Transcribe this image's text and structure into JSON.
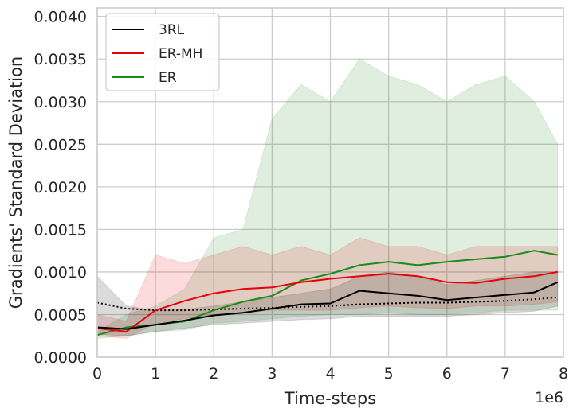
{
  "chart_data": {
    "type": "line",
    "xlabel": "Time-steps",
    "ylabel": "Gradients' Standard Deviation",
    "x_offset_text": "1e6",
    "xlim": [
      0,
      8000000
    ],
    "ylim": [
      0,
      0.0041
    ],
    "x_ticks": [
      0,
      1000000,
      2000000,
      3000000,
      4000000,
      5000000,
      6000000,
      7000000,
      8000000
    ],
    "x_tick_labels": [
      "0",
      "1",
      "2",
      "3",
      "4",
      "5",
      "6",
      "7",
      "8"
    ],
    "y_ticks": [
      0,
      0.0005,
      0.001,
      0.0015,
      0.002,
      0.0025,
      0.003,
      0.0035,
      0.004
    ],
    "y_tick_labels": [
      "0.0000",
      "0.0005",
      "0.0010",
      "0.0015",
      "0.0020",
      "0.0025",
      "0.0030",
      "0.0035",
      "0.0040"
    ],
    "grid": true,
    "legend_position": "top-left",
    "x": [
      0,
      500000,
      1000000,
      1500000,
      2000000,
      2500000,
      3000000,
      3500000,
      4000000,
      4500000,
      5000000,
      5500000,
      6000000,
      6500000,
      7000000,
      7500000,
      7900000
    ],
    "series": [
      {
        "name": "3RL",
        "color": "#000000",
        "dotted_color": "#000000",
        "values": [
          0.00035,
          0.00033,
          0.00038,
          0.00043,
          0.00049,
          0.00052,
          0.00057,
          0.00062,
          0.00063,
          0.00078,
          0.00075,
          0.00072,
          0.00067,
          0.0007,
          0.00073,
          0.00076,
          0.00088
        ],
        "band_low": [
          0.00027,
          0.00025,
          0.0003,
          0.00034,
          0.00038,
          0.0004,
          0.00042,
          0.00044,
          0.00045,
          0.00048,
          0.00048,
          0.00048,
          0.00048,
          0.0005,
          0.00052,
          0.00054,
          0.0006
        ],
        "band_high": [
          0.00095,
          0.0006,
          0.00055,
          0.00056,
          0.0006,
          0.00065,
          0.0007,
          0.00075,
          0.0008,
          0.00095,
          0.001,
          0.00095,
          0.00085,
          0.0009,
          0.00095,
          0.001,
          0.001
        ],
        "baseline": [
          0.00064,
          0.00057,
          0.00055,
          0.00055,
          0.00056,
          0.00057,
          0.00058,
          0.00059,
          0.0006,
          0.00062,
          0.00063,
          0.00064,
          0.00064,
          0.00065,
          0.00066,
          0.00068,
          0.0007
        ]
      },
      {
        "name": "ER-MH",
        "color": "#e8000b",
        "values": [
          0.00034,
          0.0003,
          0.00055,
          0.00066,
          0.00075,
          0.0008,
          0.00082,
          0.00088,
          0.00092,
          0.00095,
          0.00098,
          0.00095,
          0.00088,
          0.00087,
          0.00092,
          0.00095,
          0.001
        ],
        "band_low": [
          0.00025,
          0.00022,
          0.0004,
          0.00045,
          0.0005,
          0.00052,
          0.00055,
          0.00055,
          0.00055,
          0.00058,
          0.0006,
          0.00058,
          0.00057,
          0.0006,
          0.0006,
          0.00062,
          0.00065
        ],
        "band_high": [
          0.0005,
          0.00042,
          0.0012,
          0.0011,
          0.0012,
          0.0013,
          0.0012,
          0.0013,
          0.0012,
          0.0014,
          0.0013,
          0.0013,
          0.0012,
          0.0013,
          0.0013,
          0.0013,
          0.0013
        ]
      },
      {
        "name": "ER",
        "color": "#1a8a1a",
        "values": [
          0.00026,
          0.00035,
          0.00038,
          0.00042,
          0.00055,
          0.00065,
          0.00072,
          0.0009,
          0.00098,
          0.00108,
          0.00112,
          0.00108,
          0.00112,
          0.00115,
          0.00118,
          0.00125,
          0.0012
        ],
        "band_low": [
          0.00022,
          0.00025,
          0.0003,
          0.00032,
          0.0004,
          0.00042,
          0.00045,
          0.00048,
          0.0005,
          0.0005,
          0.00052,
          0.0005,
          0.0005,
          0.00052,
          0.00055,
          0.00055,
          0.00055
        ],
        "band_high": [
          0.0003,
          0.0005,
          0.0006,
          0.0008,
          0.0014,
          0.0015,
          0.0028,
          0.0032,
          0.003,
          0.0035,
          0.0033,
          0.0032,
          0.003,
          0.0032,
          0.0033,
          0.003,
          0.0025
        ]
      }
    ]
  }
}
